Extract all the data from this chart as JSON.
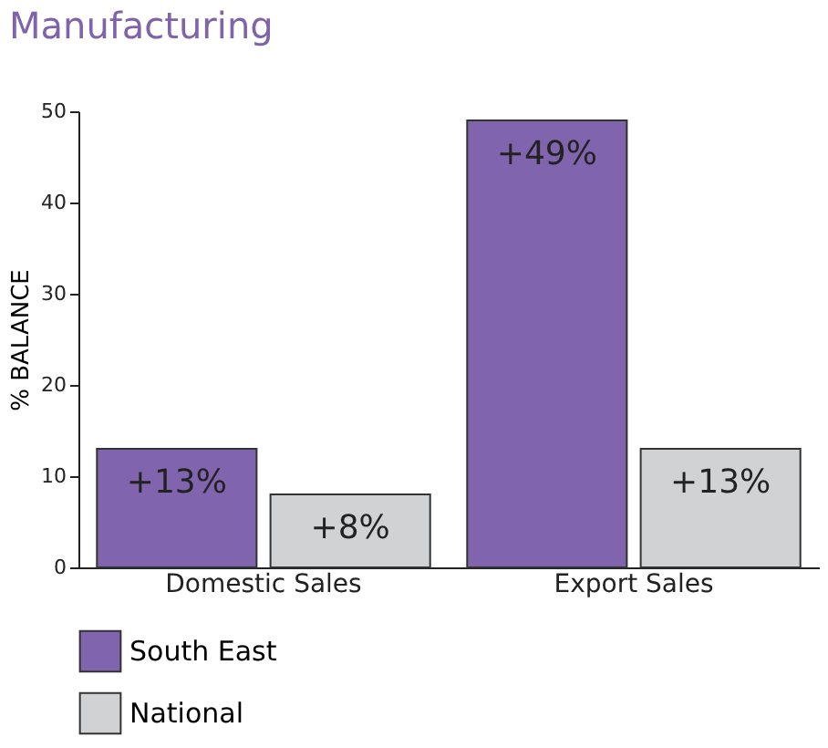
{
  "chart_data": {
    "type": "bar",
    "title": "Manufacturing",
    "ylabel": "% BALANCE",
    "categories": [
      "Domestic Sales",
      "Export Sales"
    ],
    "series": [
      {
        "name": "South East",
        "color": "#8064ad",
        "values": [
          13,
          49
        ],
        "value_labels": [
          "+13%",
          "+49%"
        ]
      },
      {
        "name": "National",
        "color": "#d1d2d4",
        "values": [
          8,
          13
        ],
        "value_labels": [
          "+8%",
          "+13%"
        ]
      }
    ],
    "ylim": [
      0,
      50
    ],
    "yticks": [
      0,
      10,
      20,
      30,
      40,
      50
    ],
    "grid": false,
    "legend": "bottom"
  }
}
